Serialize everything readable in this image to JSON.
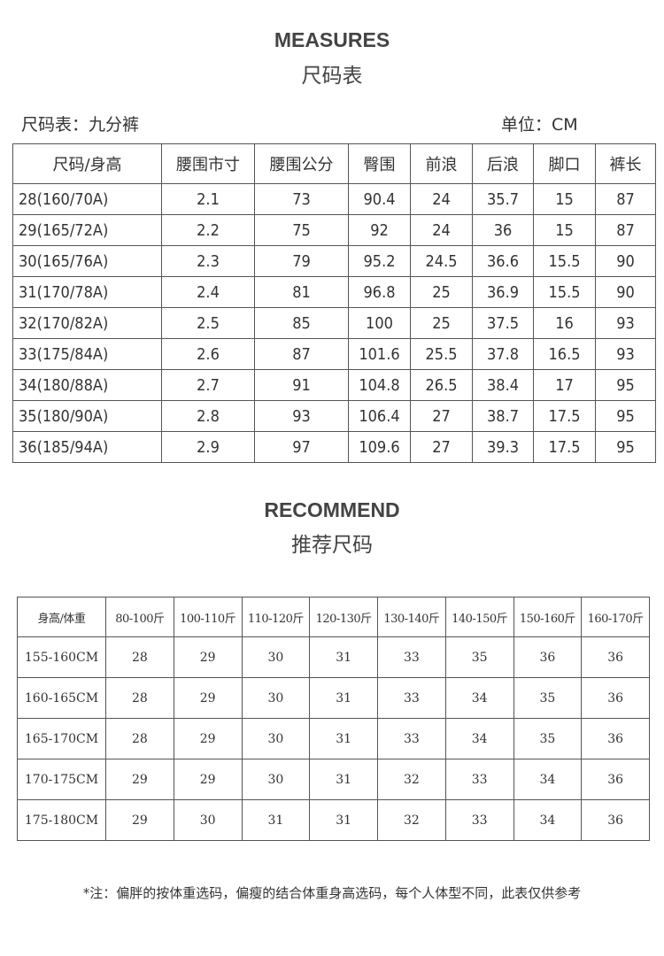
{
  "measures": {
    "title_en": "MEASURES",
    "title_cn": "尺码表",
    "label_left": "尺码表：九分裤",
    "label_right": "单位：CM",
    "headers": [
      "尺码/身高",
      "腰围市寸",
      "腰围公分",
      "臀围",
      "前浪",
      "后浪",
      "脚口",
      "裤长"
    ],
    "rows": [
      [
        "28(160/70A)",
        "2.1",
        "73",
        "90.4",
        "24",
        "35.7",
        "15",
        "87"
      ],
      [
        "29(165/72A)",
        "2.2",
        "75",
        "92",
        "24",
        "36",
        "15",
        "87"
      ],
      [
        "30(165/76A)",
        "2.3",
        "79",
        "95.2",
        "24.5",
        "36.6",
        "15.5",
        "90"
      ],
      [
        "31(170/78A)",
        "2.4",
        "81",
        "96.8",
        "25",
        "36.9",
        "15.5",
        "90"
      ],
      [
        "32(170/82A)",
        "2.5",
        "85",
        "100",
        "25",
        "37.5",
        "16",
        "93"
      ],
      [
        "33(175/84A)",
        "2.6",
        "87",
        "101.6",
        "25.5",
        "37.8",
        "16.5",
        "93"
      ],
      [
        "34(180/88A)",
        "2.7",
        "91",
        "104.8",
        "26.5",
        "38.4",
        "17",
        "95"
      ],
      [
        "35(180/90A)",
        "2.8",
        "93",
        "106.4",
        "27",
        "38.7",
        "17.5",
        "95"
      ],
      [
        "36(185/94A)",
        "2.9",
        "97",
        "109.6",
        "27",
        "39.3",
        "17.5",
        "95"
      ]
    ]
  },
  "recommend": {
    "title_en": "RECOMMEND",
    "title_cn": "推荐尺码",
    "headers": [
      "身高/体重",
      "80-100斤",
      "100-110斤",
      "110-120斤",
      "120-130斤",
      "130-140斤",
      "140-150斤",
      "150-160斤",
      "160-170斤"
    ],
    "rows": [
      [
        "155-160CM",
        "28",
        "29",
        "30",
        "31",
        "33",
        "35",
        "36",
        "36"
      ],
      [
        "160-165CM",
        "28",
        "29",
        "30",
        "31",
        "33",
        "34",
        "35",
        "36"
      ],
      [
        "165-170CM",
        "28",
        "29",
        "30",
        "31",
        "33",
        "34",
        "35",
        "36"
      ],
      [
        "170-175CM",
        "29",
        "29",
        "30",
        "31",
        "32",
        "33",
        "34",
        "36"
      ],
      [
        "175-180CM",
        "29",
        "30",
        "31",
        "31",
        "32",
        "33",
        "34",
        "36"
      ]
    ]
  },
  "note": "*注：偏胖的按体重选码，偏瘦的结合体重身高选码，每个人体型不同，此表仅供参考"
}
